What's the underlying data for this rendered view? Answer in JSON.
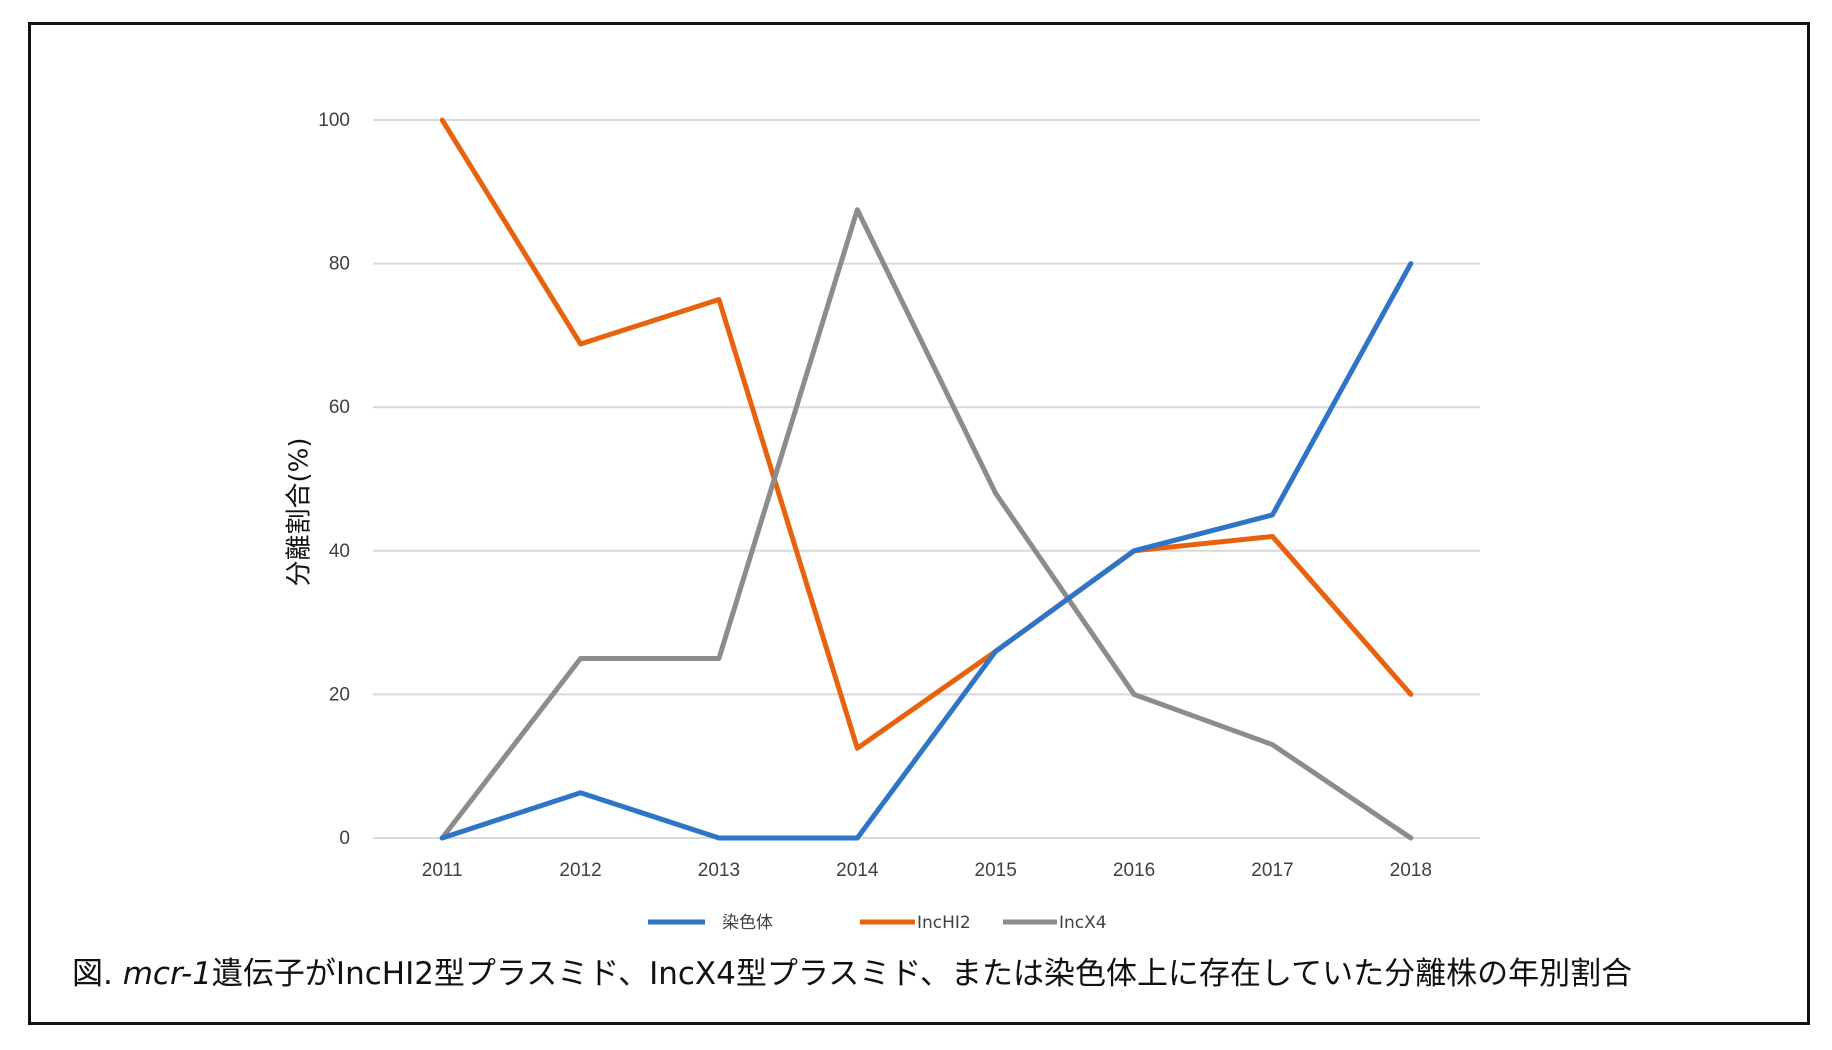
{
  "figure": {
    "caption_prefix": "図. ",
    "caption_gene": "mcr-1",
    "caption_rest": "遺伝子がIncHI2型プラスミド、IncX4型プラスミド、または染色体上に存在していた分離株の年別割合"
  },
  "chart_data": {
    "type": "line",
    "title": "",
    "xlabel": "",
    "ylabel": "分離割合(%)",
    "categories": [
      "2011",
      "2012",
      "2013",
      "2014",
      "2015",
      "2016",
      "2017",
      "2018"
    ],
    "ylim": [
      0,
      100
    ],
    "yticks": [
      0,
      20,
      40,
      60,
      80,
      100
    ],
    "grid": true,
    "legend_position": "bottom",
    "series": [
      {
        "name": "染色体",
        "color": "#2E75C7",
        "values": [
          0,
          6.3,
          0,
          0,
          26,
          40,
          45,
          80
        ]
      },
      {
        "name": "IncHI2",
        "color": "#E8620E",
        "values": [
          100,
          68.8,
          75,
          12.5,
          26,
          40,
          42,
          20
        ]
      },
      {
        "name": "IncX4",
        "color": "#8C8C8C",
        "values": [
          0,
          25,
          25,
          87.5,
          48,
          20,
          13,
          0
        ]
      }
    ]
  }
}
